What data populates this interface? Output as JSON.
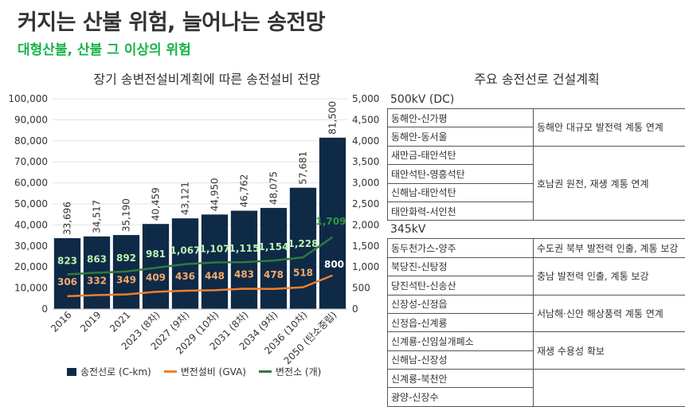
{
  "header": {
    "title": "커지는 산불 위험, 늘어나는 송전망",
    "subtitle": "대형산불, 산불 그 이상의 위험"
  },
  "chart_data": {
    "type": "bar",
    "title": "장기 송변전설비계획에 따른 송전설비 전망",
    "categories": [
      "2016",
      "2019",
      "2021",
      "2023 (8차)",
      "2027 (9차)",
      "2029 (10차)",
      "2031 (8차)",
      "2034 (9차)",
      "2036 (10차)",
      "2050 (탄소중립)"
    ],
    "yleft_ticks": [
      "0",
      "10,000",
      "20,000",
      "30,000",
      "40,000",
      "50,000",
      "60,000",
      "70,000",
      "80,000",
      "90,000",
      "100,000"
    ],
    "yright_ticks": [
      "0",
      "500",
      "1,000",
      "1,500",
      "2,000",
      "2,500",
      "3,000",
      "3,500",
      "4,000",
      "4,500",
      "5,000"
    ],
    "ylim_left": [
      0,
      100000
    ],
    "ylim_right": [
      0,
      5000
    ],
    "series": [
      {
        "name": "송전선로 (C-km)",
        "axis": "left",
        "color": "#0e2a47",
        "values": [
          33696,
          34517,
          35190,
          40459,
          43121,
          44950,
          46762,
          48075,
          57681,
          81500
        ],
        "labels": [
          "33,696",
          "34,517",
          "35,190",
          "40,459",
          "43,121",
          "44,950",
          "46,762",
          "48,075",
          "57,681",
          "81,500"
        ]
      },
      {
        "name": "변전설비 (GVA)",
        "axis": "right",
        "color": "#f07f2c",
        "values": [
          306,
          332,
          349,
          409,
          436,
          448,
          483,
          478,
          518,
          800
        ],
        "labels": [
          "306",
          "332",
          "349",
          "409",
          "436",
          "448",
          "483",
          "478",
          "518",
          "800"
        ]
      },
      {
        "name": "변전소 (개)",
        "axis": "right",
        "color": "#2f7a3a",
        "values": [
          823,
          863,
          892,
          981,
          1067,
          1107,
          1115,
          1154,
          1228,
          1709
        ],
        "labels": [
          "823",
          "863",
          "892",
          "981",
          "1,067",
          "1,107",
          "1,115",
          "1,154",
          "1,228",
          "1,709"
        ]
      }
    ]
  },
  "table": {
    "title": "주요 송전선로 건설계획",
    "sections": [
      {
        "heading": "500kV (DC)",
        "groups": [
          {
            "lines": [
              "동해안-신가평",
              "동해안-동서울"
            ],
            "purpose": "동해안 대규모 발전력 계통 연계"
          },
          {
            "lines": [
              "새만금-태안석탄",
              "태안석탄-영흥석탄",
              "신해남-태안석탄",
              "태안화력-서인천"
            ],
            "purpose": "호남권 원전, 재생 계통 연계"
          }
        ]
      },
      {
        "heading": "345kV",
        "groups": [
          {
            "lines": [
              "동두천가스-양주"
            ],
            "purpose": "수도권 북부 발전력 인출, 계통 보강"
          },
          {
            "lines": [
              "북당진-신탕정",
              "당진석탄-신송산"
            ],
            "purpose": "충남 발전력 인출, 계통 보강"
          },
          {
            "lines": [
              "신장성-신정읍",
              "신정읍-신계룡"
            ],
            "purpose": "서남해·신안 해상풍력 계통 연계"
          },
          {
            "lines": [
              "신계룡-신임실개폐소",
              "신해남-신장성"
            ],
            "purpose": "재생 수용성 확보"
          },
          {
            "lines": [
              "신계룡-북천안",
              "광양-신장수"
            ],
            "purpose": ""
          }
        ]
      }
    ]
  }
}
